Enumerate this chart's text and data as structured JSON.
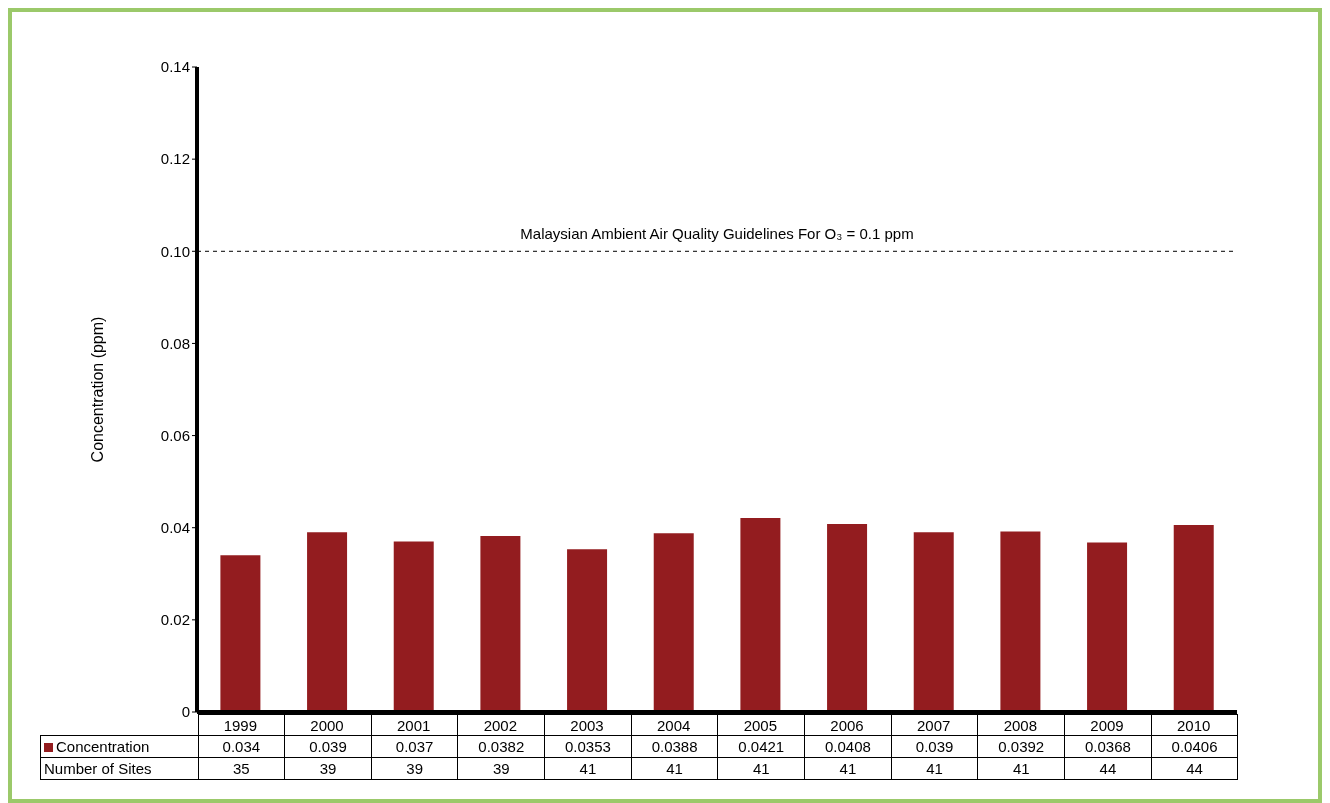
{
  "chart_data": {
    "type": "bar",
    "ylabel": "Concentration (ppm)",
    "categories": [
      "1999",
      "2000",
      "2001",
      "2002",
      "2003",
      "2004",
      "2005",
      "2006",
      "2007",
      "2008",
      "2009",
      "2010"
    ],
    "series": [
      {
        "name": "Concentration",
        "color": "#931c1f",
        "values": [
          0.034,
          0.039,
          0.037,
          0.0382,
          0.0353,
          0.0388,
          0.0421,
          0.0408,
          0.039,
          0.0392,
          0.0368,
          0.0406
        ]
      }
    ],
    "data_labels": true,
    "ylim": [
      0,
      0.14
    ],
    "yticks": [
      0,
      0.02,
      0.04,
      0.06,
      0.08,
      {
        "value": 0.1,
        "label": "0.10"
      },
      0.12,
      0.14
    ],
    "ref_lines": [
      {
        "axis": "y",
        "value": 0.1,
        "label": "Malaysian Ambient Air Quality Guidelines For O₃ = 0.1 ppm",
        "color": "#000000",
        "line_style": "dashed"
      }
    ],
    "annotations": [
      "Number of Sites",
      "35",
      "39",
      "39",
      "39",
      "41",
      "41",
      "41",
      "41",
      "41",
      "41",
      "44",
      "44"
    ],
    "grid": false,
    "legend": "bottom left"
  }
}
